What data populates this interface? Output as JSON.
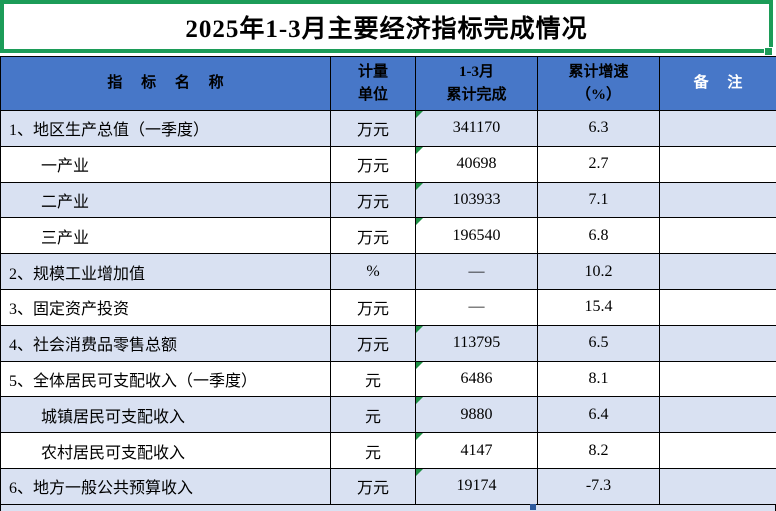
{
  "title": "2025年1-3月主要经济指标完成情况",
  "table": {
    "header": {
      "indicator": "指　 标　 名　 称",
      "unit_lines": [
        "计量",
        "单位"
      ],
      "value_lines": [
        "1-3月",
        "累计完成"
      ],
      "growth_lines": [
        "累计增速",
        "（%）"
      ],
      "note": "备　 注"
    },
    "rows": [
      {
        "name": "1、地区生产总值（一季度）",
        "unit": "万元",
        "value": "341170",
        "growth": "6.3",
        "note": "",
        "indent": false,
        "shaded": true,
        "flag": true
      },
      {
        "name": "一产业",
        "unit": "万元",
        "value": "40698",
        "growth": "2.7",
        "note": "",
        "indent": true,
        "shaded": false,
        "flag": true
      },
      {
        "name": "二产业",
        "unit": "万元",
        "value": "103933",
        "growth": "7.1",
        "note": "",
        "indent": true,
        "shaded": true,
        "flag": true
      },
      {
        "name": "三产业",
        "unit": "万元",
        "value": "196540",
        "growth": "6.8",
        "note": "",
        "indent": true,
        "shaded": false,
        "flag": true
      },
      {
        "name": "2、规模工业增加值",
        "unit": "%",
        "value": "—",
        "growth": "10.2",
        "note": "",
        "indent": false,
        "shaded": true,
        "flag": false
      },
      {
        "name": "3、固定资产投资",
        "unit": "万元",
        "value": "—",
        "growth": "15.4",
        "note": "",
        "indent": false,
        "shaded": false,
        "flag": false
      },
      {
        "name": "4、社会消费品零售总额",
        "unit": "万元",
        "value": "113795",
        "growth": "6.5",
        "note": "",
        "indent": false,
        "shaded": true,
        "flag": true
      },
      {
        "name": "5、全体居民可支配收入（一季度）",
        "unit": "元",
        "value": "6486",
        "growth": "8.1",
        "note": "",
        "indent": false,
        "shaded": false,
        "flag": true
      },
      {
        "name": "城镇居民可支配收入",
        "unit": "元",
        "value": "9880",
        "growth": "6.4",
        "note": "",
        "indent": true,
        "shaded": true,
        "flag": true
      },
      {
        "name": "农村居民可支配收入",
        "unit": "元",
        "value": "4147",
        "growth": "8.2",
        "note": "",
        "indent": true,
        "shaded": false,
        "flag": true
      },
      {
        "name": "6、地方一般公共预算收入",
        "unit": "万元",
        "value": "19174",
        "growth": "-7.3",
        "note": "",
        "indent": false,
        "shaded": true,
        "flag": true
      }
    ]
  },
  "colors": {
    "header_bg": "#4777C8",
    "shaded_row_bg": "#D9E1F2",
    "title_border_green": "#1C9C58",
    "grid_line": "#000000",
    "flag_indicator_green": "#1E8F44",
    "note_header_text": "#FFFFFF",
    "fill_handle_blue": "#2E5B9F"
  }
}
